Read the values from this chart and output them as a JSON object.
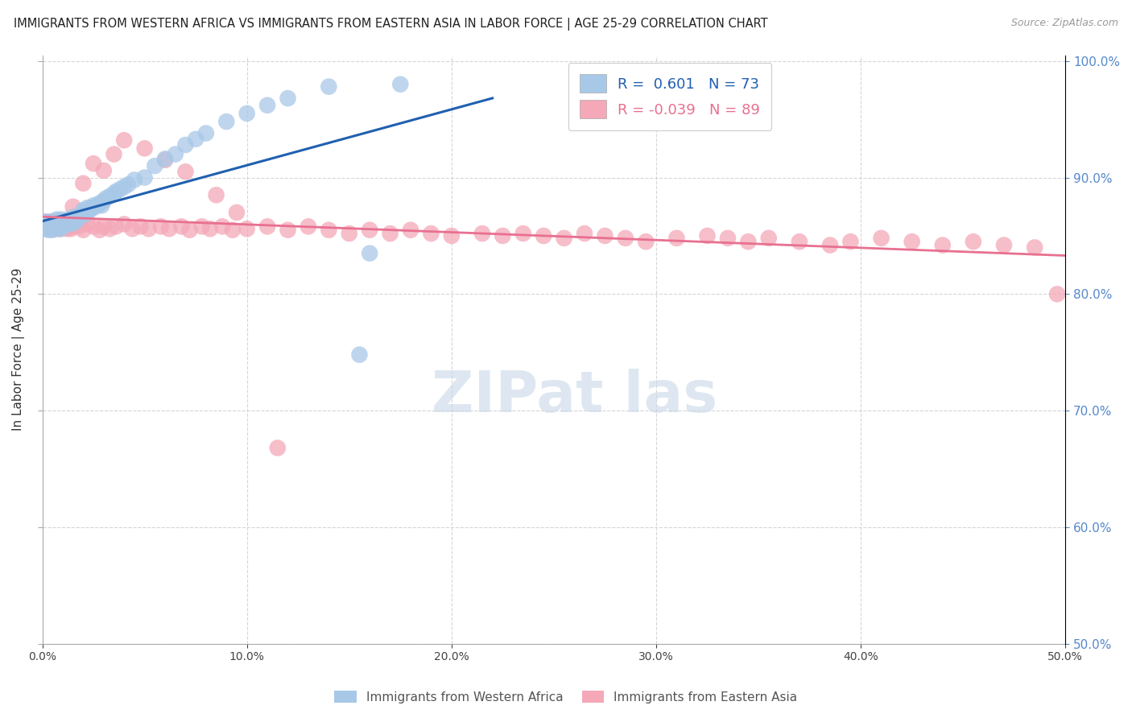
{
  "title": "IMMIGRANTS FROM WESTERN AFRICA VS IMMIGRANTS FROM EASTERN ASIA IN LABOR FORCE | AGE 25-29 CORRELATION CHART",
  "source": "Source: ZipAtlas.com",
  "ylabel": "In Labor Force | Age 25-29",
  "xlim": [
    0.0,
    0.5
  ],
  "ylim": [
    0.5,
    1.005
  ],
  "r_blue": 0.601,
  "n_blue": 73,
  "r_pink": -0.039,
  "n_pink": 89,
  "color_blue": "#A8C8E8",
  "color_pink": "#F4A8B8",
  "line_blue": "#2060B0",
  "line_pink": "#E87090",
  "tick_color": "#5588CC",
  "legend_label_blue": "Immigrants from Western Africa",
  "legend_label_pink": "Immigrants from Eastern Asia",
  "watermark_color": "#C8D8E8",
  "blue_x": [
    0.001,
    0.001,
    0.002,
    0.002,
    0.003,
    0.003,
    0.003,
    0.004,
    0.004,
    0.005,
    0.005,
    0.005,
    0.006,
    0.006,
    0.007,
    0.007,
    0.007,
    0.008,
    0.008,
    0.009,
    0.009,
    0.009,
    0.01,
    0.01,
    0.011,
    0.012,
    0.012,
    0.013,
    0.014,
    0.014,
    0.015,
    0.015,
    0.016,
    0.016,
    0.017,
    0.018,
    0.019,
    0.02,
    0.02,
    0.02,
    0.022,
    0.022,
    0.023,
    0.024,
    0.025,
    0.025,
    0.027,
    0.028,
    0.029,
    0.03,
    0.031,
    0.033,
    0.035,
    0.036,
    0.038,
    0.04,
    0.042,
    0.045,
    0.05,
    0.055,
    0.06,
    0.065,
    0.07,
    0.075,
    0.08,
    0.09,
    0.1,
    0.11,
    0.12,
    0.14,
    0.155,
    0.16,
    0.175
  ],
  "blue_y": [
    0.86,
    0.862,
    0.858,
    0.856,
    0.855,
    0.858,
    0.862,
    0.856,
    0.86,
    0.858,
    0.862,
    0.855,
    0.86,
    0.858,
    0.856,
    0.86,
    0.864,
    0.858,
    0.862,
    0.856,
    0.86,
    0.864,
    0.862,
    0.858,
    0.862,
    0.86,
    0.864,
    0.862,
    0.86,
    0.864,
    0.862,
    0.866,
    0.862,
    0.866,
    0.864,
    0.866,
    0.868,
    0.87,
    0.868,
    0.872,
    0.87,
    0.874,
    0.872,
    0.874,
    0.876,
    0.874,
    0.876,
    0.878,
    0.876,
    0.88,
    0.882,
    0.884,
    0.886,
    0.888,
    0.89,
    0.892,
    0.894,
    0.898,
    0.9,
    0.91,
    0.916,
    0.92,
    0.928,
    0.933,
    0.938,
    0.948,
    0.955,
    0.962,
    0.968,
    0.978,
    0.748,
    0.835,
    0.98
  ],
  "pink_x": [
    0.001,
    0.002,
    0.003,
    0.004,
    0.005,
    0.005,
    0.006,
    0.006,
    0.007,
    0.007,
    0.008,
    0.008,
    0.009,
    0.009,
    0.01,
    0.011,
    0.012,
    0.012,
    0.013,
    0.014,
    0.015,
    0.016,
    0.018,
    0.02,
    0.022,
    0.025,
    0.028,
    0.03,
    0.033,
    0.036,
    0.04,
    0.044,
    0.048,
    0.052,
    0.058,
    0.062,
    0.068,
    0.072,
    0.078,
    0.082,
    0.088,
    0.093,
    0.1,
    0.11,
    0.12,
    0.13,
    0.14,
    0.15,
    0.16,
    0.17,
    0.18,
    0.19,
    0.2,
    0.215,
    0.225,
    0.235,
    0.245,
    0.255,
    0.265,
    0.275,
    0.285,
    0.295,
    0.31,
    0.325,
    0.335,
    0.345,
    0.355,
    0.37,
    0.385,
    0.395,
    0.41,
    0.425,
    0.44,
    0.455,
    0.47,
    0.485,
    0.496,
    0.015,
    0.02,
    0.025,
    0.03,
    0.035,
    0.04,
    0.05,
    0.06,
    0.07,
    0.085,
    0.095,
    0.115
  ],
  "pink_y": [
    0.862,
    0.858,
    0.862,
    0.856,
    0.858,
    0.862,
    0.856,
    0.86,
    0.858,
    0.862,
    0.856,
    0.86,
    0.858,
    0.856,
    0.862,
    0.858,
    0.856,
    0.862,
    0.858,
    0.856,
    0.858,
    0.862,
    0.858,
    0.855,
    0.86,
    0.858,
    0.855,
    0.858,
    0.856,
    0.858,
    0.86,
    0.856,
    0.858,
    0.856,
    0.858,
    0.856,
    0.858,
    0.855,
    0.858,
    0.856,
    0.858,
    0.855,
    0.856,
    0.858,
    0.855,
    0.858,
    0.855,
    0.852,
    0.855,
    0.852,
    0.855,
    0.852,
    0.85,
    0.852,
    0.85,
    0.852,
    0.85,
    0.848,
    0.852,
    0.85,
    0.848,
    0.845,
    0.848,
    0.85,
    0.848,
    0.845,
    0.848,
    0.845,
    0.842,
    0.845,
    0.848,
    0.845,
    0.842,
    0.845,
    0.842,
    0.84,
    0.8,
    0.875,
    0.895,
    0.912,
    0.906,
    0.92,
    0.932,
    0.925,
    0.915,
    0.905,
    0.885,
    0.87,
    0.668
  ]
}
